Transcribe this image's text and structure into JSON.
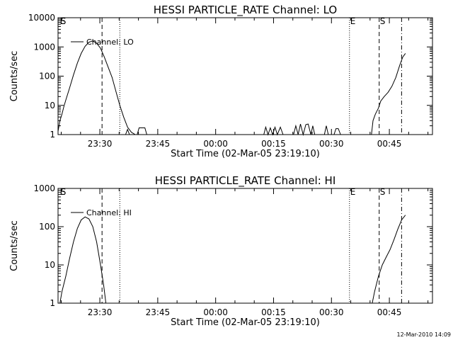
{
  "footer": {
    "timestamp": "12-Mar-2010 14:09"
  },
  "chart_data": [
    {
      "type": "line",
      "title": "HESSI PARTICLE_RATE Channel: LO",
      "xlabel": "Start Time (02-Mar-05 23:19:10)",
      "ylabel": "Counts/sec",
      "x_unit": "minutes after 23:19:10",
      "xlim": [
        0,
        97
      ],
      "ylim": [
        1,
        10000
      ],
      "yscale": "log",
      "yticks": [
        "1",
        "10",
        "100",
        "1000",
        "10000"
      ],
      "xticks": [
        {
          "label": "23:30",
          "x": 10.83
        },
        {
          "label": "23:45",
          "x": 25.83
        },
        {
          "label": "00:00",
          "x": 40.83
        },
        {
          "label": "00:15",
          "x": 55.83
        },
        {
          "label": "00:30",
          "x": 70.83
        },
        {
          "label": "00:45",
          "x": 85.83
        }
      ],
      "markers": [
        {
          "label": "E",
          "x": 0.3,
          "style": "none"
        },
        {
          "label": "S",
          "x": 0.5,
          "style": "none"
        },
        {
          "label": "",
          "x": 11.4,
          "style": "dashed"
        },
        {
          "label": "",
          "x": 16.0,
          "style": "dotted"
        },
        {
          "label": "E",
          "x": 75.5,
          "style": "dotted"
        },
        {
          "label": "S",
          "x": 83.2,
          "style": "dashed"
        },
        {
          "label": "",
          "x": 89.0,
          "style": "dashdot"
        }
      ],
      "series": [
        {
          "name": "Channel: LO",
          "segments": [
            [
              [
                0,
                1.3
              ],
              [
                0.5,
                3
              ],
              [
                1,
                5
              ],
              [
                1.5,
                9
              ],
              [
                2,
                15
              ],
              [
                3,
                40
              ],
              [
                4,
                110
              ],
              [
                5,
                280
              ],
              [
                6,
                600
              ],
              [
                7,
                1050
              ],
              [
                8,
                1450
              ],
              [
                9,
                1600
              ],
              [
                10,
                1350
              ],
              [
                11,
                900
              ],
              [
                12,
                450
              ],
              [
                13,
                200
              ],
              [
                14,
                90
              ],
              [
                15,
                30
              ],
              [
                16,
                10
              ],
              [
                17,
                4
              ],
              [
                18,
                1.8
              ],
              [
                19,
                1.2
              ],
              [
                20,
                1
              ]
            ],
            [
              [
                17.5,
                1
              ],
              [
                18,
                1.5
              ],
              [
                18.5,
                1
              ]
            ],
            [
              [
                20.5,
                1
              ],
              [
                21,
                1.7
              ],
              [
                21.5,
                1.7
              ],
              [
                22.5,
                1.7
              ],
              [
                23,
                1
              ]
            ],
            [
              [
                53.3,
                1
              ],
              [
                53.8,
                1.8
              ],
              [
                54.4,
                1
              ],
              [
                55,
                1.7
              ],
              [
                55.6,
                1
              ],
              [
                56.2,
                1.8
              ],
              [
                56.8,
                1
              ],
              [
                57.6,
                1.8
              ],
              [
                58.3,
                1
              ]
            ],
            [
              [
                61,
                1
              ],
              [
                61.6,
                2
              ],
              [
                62.2,
                1
              ],
              [
                62.8,
                2.3
              ],
              [
                63.5,
                1
              ],
              [
                64.2,
                2.2
              ],
              [
                64.8,
                2.3
              ],
              [
                65.5,
                1
              ],
              [
                66,
                2
              ],
              [
                66.5,
                1
              ]
            ],
            [
              [
                69,
                1
              ],
              [
                69.5,
                2
              ],
              [
                70,
                1
              ]
            ],
            [
              [
                71.5,
                1
              ],
              [
                72,
                1.6
              ],
              [
                72.6,
                1.6
              ],
              [
                73.2,
                1
              ]
            ],
            [
              [
                81.2,
                1
              ],
              [
                81.6,
                3
              ],
              [
                82.2,
                5
              ],
              [
                83,
                8
              ],
              [
                83.6,
                14
              ],
              [
                84.5,
                20
              ],
              [
                85.5,
                28
              ],
              [
                86.5,
                45
              ],
              [
                87.5,
                90
              ],
              [
                88.5,
                230
              ],
              [
                89.3,
                450
              ],
              [
                90,
                600
              ]
            ]
          ]
        }
      ]
    },
    {
      "type": "line",
      "title": "HESSI PARTICLE_RATE Channel: HI",
      "xlabel": "Start Time (02-Mar-05 23:19:10)",
      "ylabel": "Counts/sec",
      "x_unit": "minutes after 23:19:10",
      "xlim": [
        0,
        97
      ],
      "ylim": [
        1,
        1000
      ],
      "yscale": "log",
      "yticks": [
        "1",
        "10",
        "100",
        "1000"
      ],
      "xticks": [
        {
          "label": "23:30",
          "x": 10.83
        },
        {
          "label": "23:45",
          "x": 25.83
        },
        {
          "label": "00:00",
          "x": 40.83
        },
        {
          "label": "00:15",
          "x": 55.83
        },
        {
          "label": "00:30",
          "x": 70.83
        },
        {
          "label": "00:45",
          "x": 85.83
        }
      ],
      "markers": [
        {
          "label": "E",
          "x": 0.3,
          "style": "none"
        },
        {
          "label": "S",
          "x": 0.5,
          "style": "none"
        },
        {
          "label": "",
          "x": 11.4,
          "style": "dashed"
        },
        {
          "label": "",
          "x": 16.0,
          "style": "dotted"
        },
        {
          "label": "E",
          "x": 75.5,
          "style": "dotted"
        },
        {
          "label": "S",
          "x": 83.2,
          "style": "dashed"
        },
        {
          "label": "",
          "x": 89.0,
          "style": "dashdot"
        }
      ],
      "series": [
        {
          "name": "Channel: HI",
          "segments": [
            [
              [
                0.5,
                1
              ],
              [
                1,
                2
              ],
              [
                2,
                5
              ],
              [
                3,
                15
              ],
              [
                4,
                40
              ],
              [
                5,
                90
              ],
              [
                6,
                150
              ],
              [
                7,
                180
              ],
              [
                8,
                160
              ],
              [
                9,
                100
              ],
              [
                10,
                40
              ],
              [
                11,
                10
              ],
              [
                11.8,
                3
              ],
              [
                12.4,
                1
              ]
            ],
            [
              [
                81.4,
                1
              ],
              [
                82,
                2
              ],
              [
                83,
                5
              ],
              [
                84,
                10
              ],
              [
                85,
                16
              ],
              [
                86,
                25
              ],
              [
                87,
                45
              ],
              [
                88,
                85
              ],
              [
                89,
                150
              ],
              [
                90,
                200
              ]
            ]
          ]
        }
      ]
    }
  ]
}
